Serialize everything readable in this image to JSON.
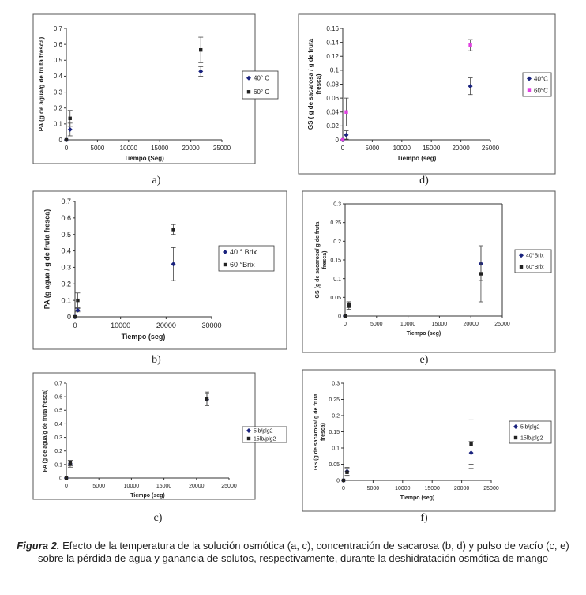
{
  "charts": [
    {
      "type": "scatter",
      "ylabel": "PA (g de agua/g de fruta fresca)",
      "xlabel": "Tiempo (Seg)",
      "x_ticks": [
        0,
        5000,
        10000,
        15000,
        20000,
        25000
      ],
      "y_ticks": [
        0,
        0.1,
        0.2,
        0.3,
        0.4,
        0.5,
        0.6,
        0.7
      ],
      "xlim": [
        0,
        25000
      ],
      "ylim": [
        0,
        0.7
      ],
      "series": [
        {
          "name": "40° C",
          "marker": "diamond",
          "color": "#1a237e",
          "points": [
            {
              "x": 0,
              "y": 0,
              "err": 0
            },
            {
              "x": 600,
              "y": 0.065,
              "err": 0.04
            },
            {
              "x": 21600,
              "y": 0.43,
              "err": 0.03
            }
          ]
        },
        {
          "name": "60° C",
          "marker": "square",
          "color": "#222222",
          "points": [
            {
              "x": 0,
              "y": 0,
              "err": 0
            },
            {
              "x": 600,
              "y": 0.135,
              "err": 0.05
            },
            {
              "x": 21600,
              "y": 0.565,
              "err": 0.08
            }
          ]
        }
      ],
      "panel_label": "a)"
    },
    {
      "type": "scatter",
      "ylabel": "GS ( g de sacarosa / g de fruta fresca)",
      "xlabel": "Tiempo (seg)",
      "x_ticks": [
        0,
        5000,
        10000,
        15000,
        20000,
        25000
      ],
      "y_ticks": [
        0,
        0.02,
        0.04,
        0.06,
        0.08,
        0.1,
        0.12,
        0.14,
        0.16
      ],
      "xlim": [
        0,
        25000
      ],
      "ylim": [
        0,
        0.16
      ],
      "series": [
        {
          "name": "40°C",
          "marker": "diamond",
          "color": "#1a237e",
          "points": [
            {
              "x": 0,
              "y": 0,
              "err": 0
            },
            {
              "x": 600,
              "y": 0.007,
              "err": 0.006
            },
            {
              "x": 21600,
              "y": 0.077,
              "err": 0.012
            }
          ]
        },
        {
          "name": "60°C",
          "marker": "square",
          "color": "#e040e0",
          "points": [
            {
              "x": 0,
              "y": 0,
              "err": 0
            },
            {
              "x": 600,
              "y": 0.04,
              "err": 0.02
            },
            {
              "x": 21600,
              "y": 0.136,
              "err": 0.008
            }
          ]
        }
      ],
      "panel_label": "d)"
    },
    {
      "type": "scatter",
      "ylabel": "PA (g agua / g de fruta fresca)",
      "xlabel": "Tiempo (seg)",
      "x_ticks": [
        0,
        10000,
        20000,
        30000
      ],
      "y_ticks": [
        0,
        0.1,
        0.2,
        0.3,
        0.4,
        0.5,
        0.6,
        0.7
      ],
      "xlim": [
        0,
        30000
      ],
      "ylim": [
        0,
        0.7
      ],
      "series": [
        {
          "name": "40 ° Brix",
          "marker": "diamond",
          "color": "#1a237e",
          "points": [
            {
              "x": 0,
              "y": 0,
              "err": 0
            },
            {
              "x": 600,
              "y": 0.04,
              "err": 0.01
            },
            {
              "x": 21600,
              "y": 0.32,
              "err": 0.1
            }
          ]
        },
        {
          "name": "60 °Brix",
          "marker": "square",
          "color": "#222222",
          "points": [
            {
              "x": 0,
              "y": 0,
              "err": 0
            },
            {
              "x": 600,
              "y": 0.1,
              "err": 0.045
            },
            {
              "x": 21600,
              "y": 0.53,
              "err": 0.03
            }
          ]
        }
      ],
      "panel_label": "b)"
    },
    {
      "type": "scatter",
      "ylabel": "GS (g de sacarosa/ g de fruta fresca)",
      "xlabel": "Tiempo (seg)",
      "x_ticks": [
        0,
        5000,
        10000,
        15000,
        20000,
        25000
      ],
      "y_ticks": [
        0,
        0.05,
        0.1,
        0.15,
        0.2,
        0.25,
        0.3
      ],
      "xlim": [
        0,
        25000
      ],
      "ylim": [
        0,
        0.3
      ],
      "series": [
        {
          "name": "40°Brix",
          "marker": "diamond",
          "color": "#1a237e",
          "points": [
            {
              "x": 0,
              "y": 0,
              "err": 0
            },
            {
              "x": 600,
              "y": 0.028,
              "err": 0.01
            },
            {
              "x": 21600,
              "y": 0.14,
              "err": 0.045
            }
          ]
        },
        {
          "name": "60°Brix",
          "marker": "square",
          "color": "#222222",
          "points": [
            {
              "x": 0,
              "y": 0,
              "err": 0
            },
            {
              "x": 600,
              "y": 0.03,
              "err": 0.008
            },
            {
              "x": 21600,
              "y": 0.113,
              "err": 0.075
            }
          ]
        }
      ],
      "panel_label": "e)"
    },
    {
      "type": "scatter",
      "ylabel": "PA (g de agua/g de fruta fresca)",
      "xlabel": "Tiempo (seg)",
      "x_ticks": [
        0,
        5000,
        10000,
        15000,
        20000,
        25000
      ],
      "y_ticks": [
        0,
        0.1,
        0.2,
        0.3,
        0.4,
        0.5,
        0.6,
        0.7
      ],
      "xlim": [
        0,
        25000
      ],
      "ylim": [
        0,
        0.7
      ],
      "series": [
        {
          "name": "5lb/plg2",
          "marker": "diamond",
          "color": "#1a237e",
          "points": [
            {
              "x": 0,
              "y": 0,
              "err": 0
            },
            {
              "x": 600,
              "y": 0.105,
              "err": 0.025
            },
            {
              "x": 21600,
              "y": 0.58,
              "err": 0.045
            }
          ]
        },
        {
          "name": "15lb/plg2",
          "marker": "square",
          "color": "#222222",
          "points": [
            {
              "x": 0,
              "y": 0,
              "err": 0
            },
            {
              "x": 600,
              "y": 0.11,
              "err": 0.02
            },
            {
              "x": 21600,
              "y": 0.585,
              "err": 0.05
            }
          ]
        }
      ],
      "panel_label": "c)"
    },
    {
      "type": "scatter",
      "ylabel": "GS (g de sacarosa/ g de fruta fresca)",
      "xlabel": "Tiempo (seg)",
      "x_ticks": [
        0,
        5000,
        10000,
        15000,
        20000,
        25000
      ],
      "y_ticks": [
        0,
        0.05,
        0.1,
        0.15,
        0.2,
        0.25,
        0.3
      ],
      "xlim": [
        0,
        25000
      ],
      "ylim": [
        0,
        0.3
      ],
      "series": [
        {
          "name": "5lb/plg2",
          "marker": "diamond",
          "color": "#1a237e",
          "points": [
            {
              "x": 0,
              "y": 0,
              "err": 0
            },
            {
              "x": 600,
              "y": 0.028,
              "err": 0.012
            },
            {
              "x": 21600,
              "y": 0.085,
              "err": 0.035
            }
          ]
        },
        {
          "name": "15lb/plg2",
          "marker": "square",
          "color": "#222222",
          "points": [
            {
              "x": 0,
              "y": 0,
              "err": 0
            },
            {
              "x": 600,
              "y": 0.025,
              "err": 0.012
            },
            {
              "x": 21600,
              "y": 0.112,
              "err": 0.075
            }
          ]
        }
      ],
      "panel_label": "f)"
    }
  ],
  "caption": {
    "label": "Figura 2.",
    "text": " Efecto de la temperatura de la solución osmótica (a, c), concentración de sacarosa (b, d) y pulso de vacío (c, e) sobre la pérdida de agua y ganancia de solutos, respectivamente, durante la deshidratación osmótica de mango"
  }
}
